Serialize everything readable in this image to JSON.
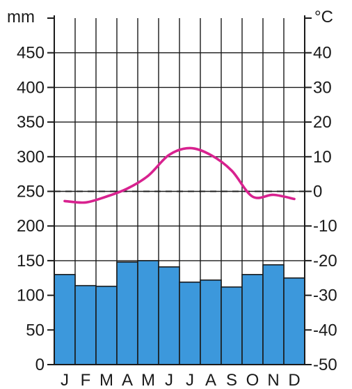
{
  "chart_data": {
    "type": "bar",
    "title": "",
    "categories": [
      "J",
      "F",
      "M",
      "A",
      "M",
      "J",
      "J",
      "A",
      "S",
      "O",
      "N",
      "D"
    ],
    "series": [
      {
        "type": "bar",
        "axis": "left",
        "values": [
          130,
          114,
          113,
          148,
          150,
          141,
          119,
          122,
          112,
          130,
          144,
          125
        ]
      },
      {
        "type": "line",
        "axis": "right",
        "values": [
          -2.8,
          -3.2,
          -1.5,
          0.8,
          4.5,
          10.5,
          12.5,
          10.5,
          6.0,
          -1.5,
          -1.0,
          -2.2
        ]
      }
    ],
    "y_left": {
      "unit": "mm",
      "ylim": [
        0,
        500
      ],
      "ticks": [
        "0",
        "50",
        "100",
        "150",
        "200",
        "250",
        "300",
        "350",
        "400",
        "450"
      ]
    },
    "y_right": {
      "unit": "°C",
      "ylim": [
        -50,
        50
      ],
      "ticks": [
        "-50",
        "-40",
        "-30",
        "-20",
        "-10",
        "0",
        "10",
        "20",
        "30",
        "40"
      ]
    },
    "reference_line": {
      "axis": "right",
      "value": 0,
      "style": "dashed"
    },
    "grid": true,
    "colors": {
      "bars": "#3c98dc",
      "line": "#d8228f",
      "axis": "#1a1a1a",
      "grid": "#1a1a1a"
    }
  }
}
